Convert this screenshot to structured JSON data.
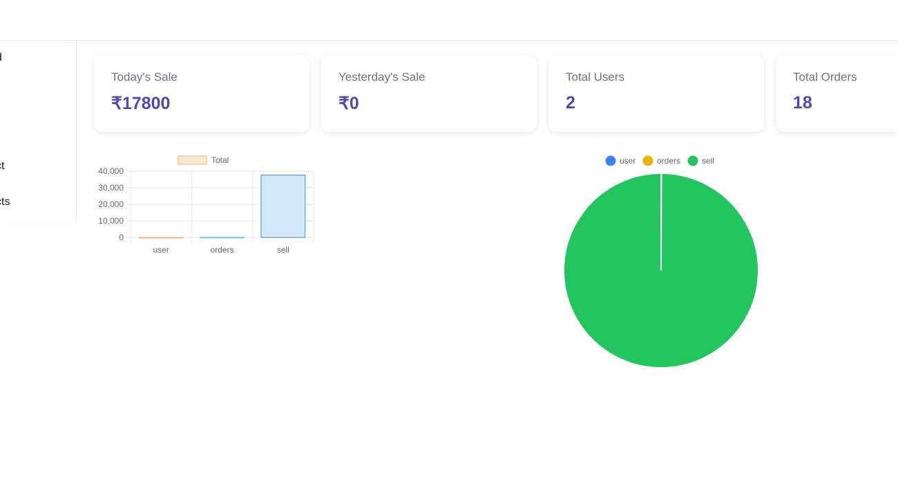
{
  "sidebar": {
    "items": [
      {
        "label": "d"
      },
      {
        "label": "ct"
      },
      {
        "label": "cts"
      }
    ]
  },
  "stats": [
    {
      "title": "Today's Sale",
      "value": "₹17800"
    },
    {
      "title": "Yesterday's Sale",
      "value": "₹0"
    },
    {
      "title": "Total Users",
      "value": "2"
    },
    {
      "title": "Total Orders",
      "value": "18"
    }
  ],
  "colors": {
    "accent": "#4f46b8",
    "user": "#3b82f6",
    "orders": "#eab308",
    "sell": "#22c55e",
    "bar_fill": "#d4e8f8",
    "bar_stroke": "#5ba4e0"
  },
  "chart_data": [
    {
      "type": "bar",
      "legend": [
        "Total"
      ],
      "categories": [
        "user",
        "orders",
        "sell"
      ],
      "series": [
        {
          "name": "Total",
          "values": [
            2,
            18,
            37600
          ]
        }
      ],
      "ylim": [
        0,
        40000
      ],
      "yticks": [
        "0",
        "10,000",
        "20,000",
        "30,000",
        "40,000"
      ],
      "grid": true,
      "legend_position": "top"
    },
    {
      "type": "pie",
      "categories": [
        "user",
        "orders",
        "sell"
      ],
      "values": [
        2,
        18,
        37600
      ],
      "legend_position": "top"
    }
  ]
}
